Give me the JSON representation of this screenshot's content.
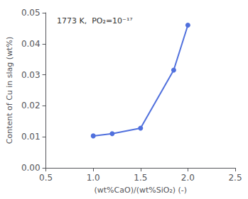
{
  "chart_data": {
    "type": "line",
    "x": [
      1.0,
      1.2,
      1.5,
      1.85,
      2.0
    ],
    "values": [
      0.0103,
      0.011,
      0.0128,
      0.0315,
      0.046
    ],
    "xlim": [
      0.5,
      2.5
    ],
    "ylim": [
      0.0,
      0.05
    ],
    "xticks": [
      0.5,
      {
        "value": 1.0,
        "label": "1.0"
      },
      1.5,
      {
        "value": 2.0,
        "label": "2.0"
      },
      2.5
    ],
    "yticks": [
      {
        "value": 0.0,
        "label": "0.00"
      },
      {
        "value": 0.01,
        "label": "0.01"
      },
      {
        "value": 0.02,
        "label": "0.02"
      },
      {
        "value": 0.03,
        "label": "0.03"
      },
      {
        "value": 0.04,
        "label": "0.04"
      },
      {
        "value": 0.05,
        "label": "0.05"
      }
    ],
    "xlabel": "(wt%CaO)/(wt%SiO₂) (-)",
    "ylabel": "Content of Cu in slag (wt%)",
    "annotation": "1773 K,  PO₂=10⁻¹⁷",
    "marker": "circle",
    "grid": false
  }
}
